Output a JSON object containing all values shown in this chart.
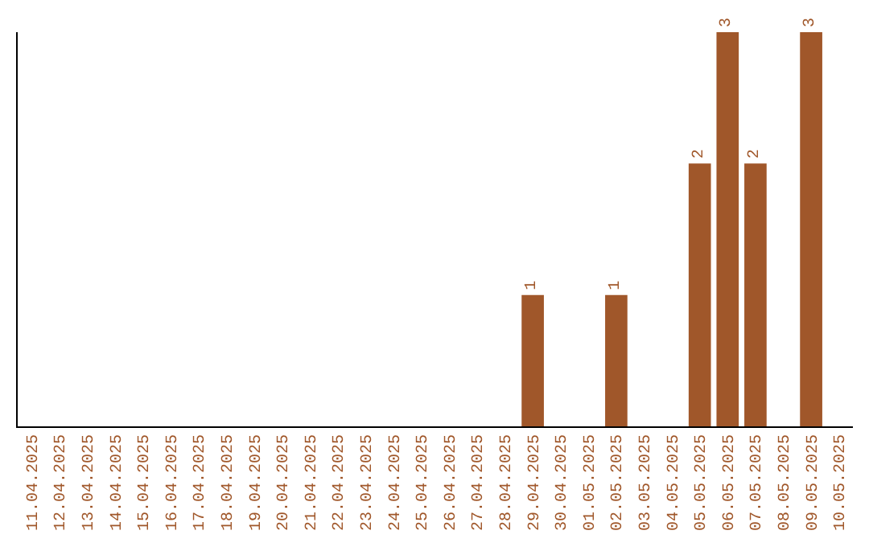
{
  "chart_data": {
    "type": "bar",
    "categories": [
      "11.04.2025",
      "12.04.2025",
      "13.04.2025",
      "14.04.2025",
      "15.04.2025",
      "16.04.2025",
      "17.04.2025",
      "18.04.2025",
      "19.04.2025",
      "20.04.2025",
      "21.04.2025",
      "22.04.2025",
      "23.04.2025",
      "24.04.2025",
      "25.04.2025",
      "26.04.2025",
      "27.04.2025",
      "28.04.2025",
      "29.04.2025",
      "30.04.2025",
      "01.05.2025",
      "02.05.2025",
      "03.05.2025",
      "04.05.2025",
      "05.05.2025",
      "06.05.2025",
      "07.05.2025",
      "08.05.2025",
      "09.05.2025",
      "10.05.2025"
    ],
    "values": [
      null,
      null,
      null,
      null,
      null,
      null,
      null,
      null,
      null,
      null,
      null,
      null,
      null,
      null,
      null,
      null,
      null,
      null,
      1,
      null,
      null,
      1,
      null,
      null,
      2,
      3,
      2,
      null,
      3,
      null
    ],
    "data_labels": true,
    "color": "#a0572a",
    "tick_labels": "x"
  }
}
